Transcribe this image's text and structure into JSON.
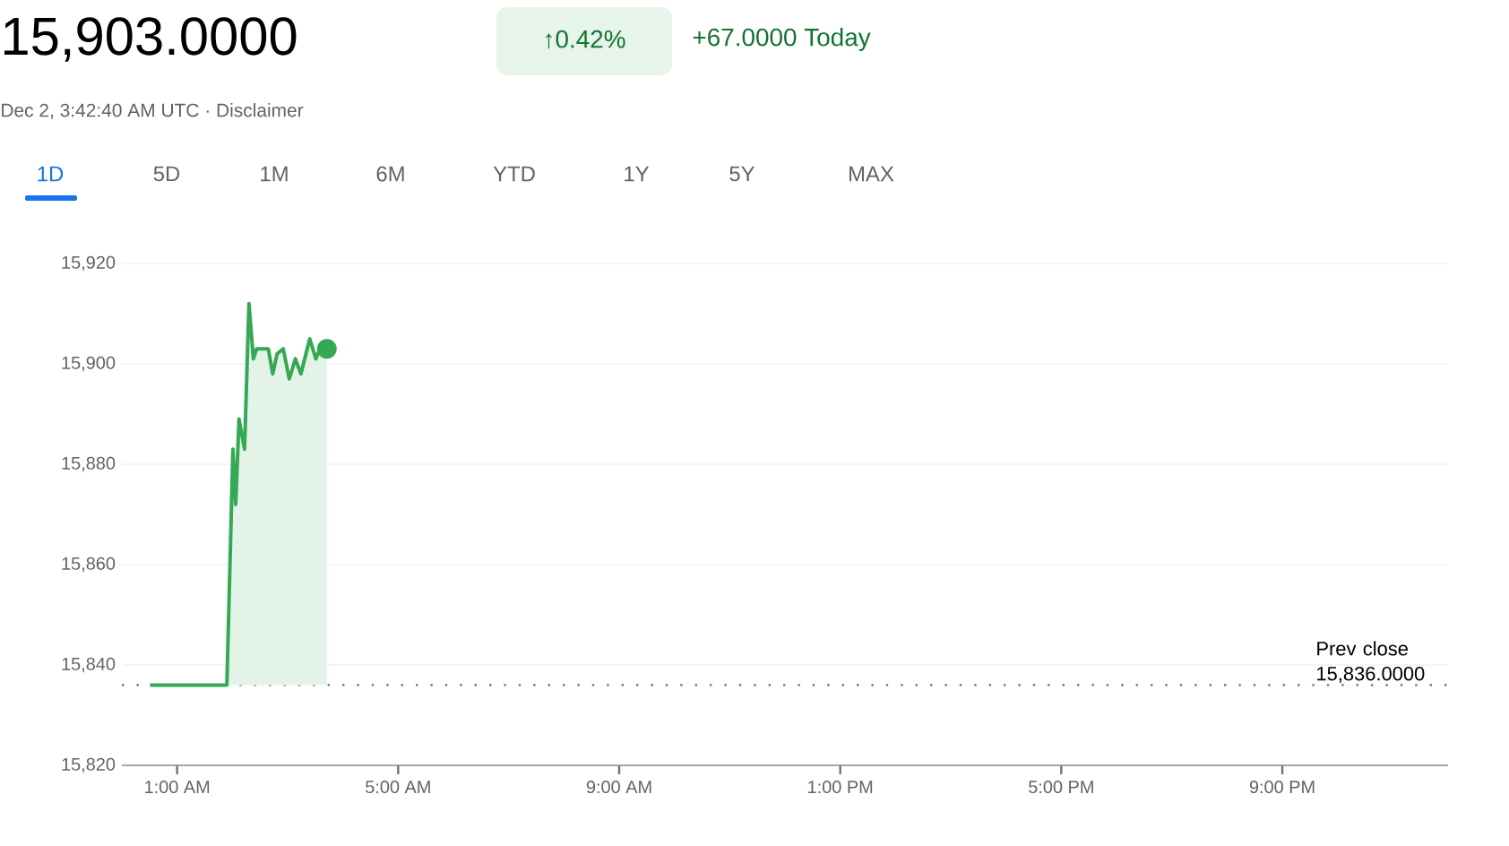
{
  "chart_data": {
    "type": "area",
    "title": "15,903.0000",
    "subtitle": "Dec 2, 3:42:40 AM UTC · Disclaimer",
    "annotations": [
      "↑0.42%",
      "+67.0000 Today",
      "1D",
      "5D",
      "1M",
      "6M",
      "YTD",
      "1Y",
      "5Y",
      "MAX"
    ],
    "x": [
      0.51,
      1.9,
      2.01,
      2.06,
      2.12,
      2.22,
      2.3,
      2.38,
      2.44,
      2.65,
      2.73,
      2.81,
      2.92,
      3.03,
      3.14,
      3.24,
      3.4,
      3.51,
      3.62,
      3.71
    ],
    "series": [
      {
        "color": "#34a853",
        "values": [
          15836,
          15836,
          15883,
          15872,
          15889,
          15883,
          15912,
          15901,
          15903,
          15903,
          15898,
          15902,
          15903,
          15897,
          15901,
          15898,
          15905,
          15901,
          15904,
          15903
        ]
      }
    ],
    "xlim": [
      0,
      24
    ],
    "xticks": [
      {
        "value": 1,
        "label": "1:00 AM"
      },
      {
        "value": 5,
        "label": "5:00 AM"
      },
      {
        "value": 9,
        "label": "9:00 AM"
      },
      {
        "value": 13,
        "label": "1:00 PM"
      },
      {
        "value": 17,
        "label": "5:00 PM"
      },
      {
        "value": 21,
        "label": "9:00 PM"
      }
    ],
    "ylim": [
      15820,
      15920
    ],
    "yticks": [
      {
        "value": 15820,
        "label": "15,820"
      },
      {
        "value": 15840,
        "label": "15,840"
      },
      {
        "value": 15860,
        "label": "15,860"
      },
      {
        "value": 15880,
        "label": "15,880"
      },
      {
        "value": 15900,
        "label": "15,900"
      },
      {
        "value": 15920,
        "label": "15,920"
      }
    ],
    "grid": "y",
    "ref_lines": [
      {
        "axis": "y",
        "value": 15836,
        "label": "Prev close 15,836.0000",
        "line_style": "dotted",
        "color": "#80868b"
      }
    ]
  }
}
